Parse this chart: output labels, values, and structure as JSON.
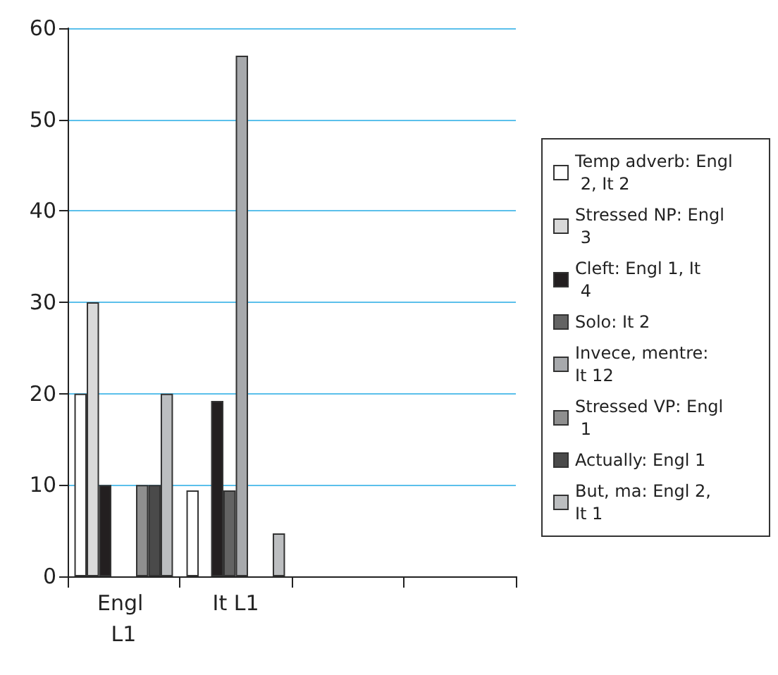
{
  "chart_data": {
    "type": "bar",
    "categories": [
      "Engl L1",
      "It L1",
      null,
      null
    ],
    "series": [
      {
        "name": "Temp adverb: Engl 2, It 2",
        "color": "#ffffff",
        "values": [
          20,
          9.4,
          null,
          null
        ]
      },
      {
        "name": "Stressed NP: Engl 3",
        "color": "#d9d9d9",
        "values": [
          30,
          null,
          null,
          null
        ]
      },
      {
        "name": "Cleft: Engl 1, It 4",
        "color": "#231f20",
        "values": [
          10,
          19.2,
          null,
          null
        ]
      },
      {
        "name": "Solo: It 2",
        "color": "#636363",
        "values": [
          null,
          9.4,
          null,
          null
        ]
      },
      {
        "name": "Invece, mentre: It 12",
        "color": "#a7a9ac",
        "values": [
          null,
          57,
          null,
          null
        ]
      },
      {
        "name": "Stressed VP: Engl 1",
        "color": "#8f8f8f",
        "values": [
          10,
          null,
          null,
          null
        ]
      },
      {
        "name": "Actually: Engl 1",
        "color": "#4a4a4a",
        "values": [
          10,
          null,
          null,
          null
        ]
      },
      {
        "name": "But, ma: Engl 2, It 1",
        "color": "#bcbec0",
        "values": [
          20,
          4.7,
          null,
          null
        ]
      }
    ],
    "ylim": [
      0,
      60
    ],
    "yticks": [
      0,
      10,
      20,
      30,
      40,
      50,
      60
    ],
    "grid": "y",
    "legend": "right"
  }
}
